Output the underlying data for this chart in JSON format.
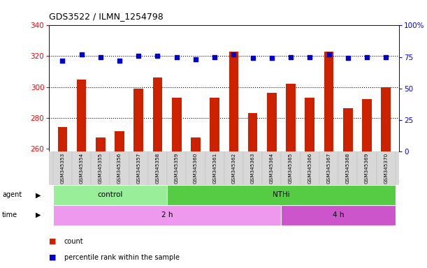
{
  "title": "GDS3522 / ILMN_1254798",
  "samples": [
    "GSM345353",
    "GSM345354",
    "GSM345355",
    "GSM345356",
    "GSM345357",
    "GSM345358",
    "GSM345359",
    "GSM345360",
    "GSM345361",
    "GSM345362",
    "GSM345363",
    "GSM345364",
    "GSM345365",
    "GSM345366",
    "GSM345367",
    "GSM345368",
    "GSM345369",
    "GSM345370"
  ],
  "counts": [
    274,
    305,
    267,
    271,
    299,
    306,
    293,
    267,
    293,
    323,
    283,
    296,
    302,
    293,
    323,
    286,
    292,
    300
  ],
  "percentiles": [
    72,
    77,
    75,
    72,
    76,
    76,
    75,
    73,
    75,
    77,
    74,
    74,
    75,
    75,
    77,
    74,
    75,
    75
  ],
  "ylim_left": [
    258,
    340
  ],
  "ylim_right": [
    0,
    100
  ],
  "yticks_left": [
    260,
    280,
    300,
    320,
    340
  ],
  "yticks_right": [
    0,
    25,
    50,
    75,
    100
  ],
  "agent_groups": [
    {
      "label": "control",
      "start": 0,
      "end": 5,
      "color": "#99EE99"
    },
    {
      "label": "NTHi",
      "start": 6,
      "end": 17,
      "color": "#55CC44"
    }
  ],
  "time_groups": [
    {
      "label": "2 h",
      "start": 0,
      "end": 11,
      "color": "#EE99EE"
    },
    {
      "label": "4 h",
      "start": 12,
      "end": 17,
      "color": "#CC55CC"
    }
  ],
  "bar_color": "#CC2200",
  "dot_color": "#0000CC",
  "bar_width": 0.5,
  "base_value": 258,
  "plot_bg": "#FFFFFF"
}
